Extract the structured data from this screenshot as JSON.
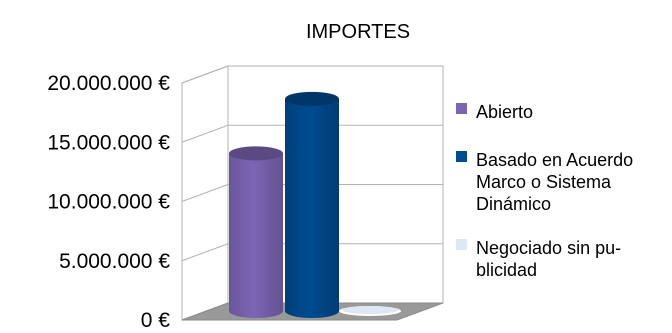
{
  "chart_data": {
    "type": "bar",
    "title": "IMPORTES",
    "xlabel": "",
    "ylabel": "",
    "categories": [
      ""
    ],
    "series": [
      {
        "name": "Abierto",
        "values": [
          13300000
        ],
        "color": "#7d65b5"
      },
      {
        "name": "Basado en Acuerdo Marco o Sistema Dinámico",
        "values": [
          17900000
        ],
        "color": "#004b91"
      },
      {
        "name": "Negociado sin publicidad",
        "values": [
          60000
        ],
        "color": "#dde8f4"
      }
    ],
    "ylim": [
      0,
      20000000
    ],
    "yticks": [
      0,
      5000000,
      10000000,
      15000000,
      20000000
    ],
    "ytick_labels": [
      "0 €",
      "5.000.000 €",
      "10.000.000 €",
      "15.000.000 €",
      "20.000.000 €"
    ],
    "grid": true,
    "legend_position": "right",
    "legend_labels": [
      [
        "Abierto"
      ],
      [
        "Basado en Acuerdo",
        "Marco o Sistema",
        "Dinámico"
      ],
      [
        "Negociado sin pu-",
        "blicidad"
      ]
    ],
    "style": "3d-cylinder"
  }
}
